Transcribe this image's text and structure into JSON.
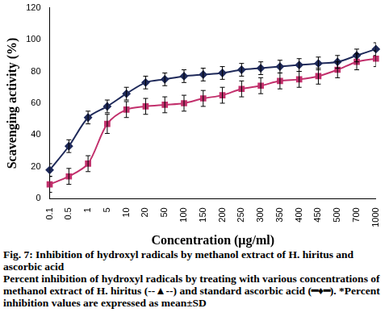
{
  "chart_data": {
    "type": "line",
    "x_label": "Concentration (μg/ml)",
    "y_label": "Scavenging activity (%)",
    "caption_title": "Fig. 7: Inhibition of hydroxyl radicals by methanol extract of H. hiritus and ascorbic acid",
    "caption": "Percent inhibition of hydroxyl radicals by treating with various concentrations of methanol extract of H. hiritus (--▲--) and standard ascorbic acid (━♦━). *Percent inhibition values are expressed as mean±SD",
    "categories": [
      "0.1",
      "0.5",
      "1",
      "5",
      "10",
      "20",
      "50",
      "100",
      "150",
      "200",
      "250",
      "300",
      "350",
      "400",
      "450",
      "500",
      "700",
      "1000"
    ],
    "series": [
      {
        "name": "standard ascorbic acid",
        "color": "#1f2a5a",
        "marker": "diamond",
        "line_style": "solid",
        "values": [
          18,
          33,
          51,
          58,
          66,
          73,
          75,
          77,
          78,
          79,
          81,
          82,
          83,
          84,
          85,
          86,
          90,
          94
        ],
        "errors": [
          4,
          4,
          4,
          4,
          4,
          4,
          4,
          4,
          4,
          4,
          4,
          4,
          4,
          4,
          4,
          4,
          4,
          4
        ]
      },
      {
        "name": "methanol extract of H. hiritus",
        "color": "#c2306c",
        "marker": "square",
        "line_style": "solid",
        "values": [
          9,
          14,
          22,
          47,
          56,
          58,
          59,
          60,
          63,
          65,
          69,
          71,
          74,
          75,
          77,
          81,
          86,
          88
        ],
        "errors": [
          5,
          5,
          5,
          6,
          5,
          5,
          5,
          5,
          5,
          5,
          5,
          5,
          5,
          5,
          5,
          5,
          5,
          5
        ]
      }
    ],
    "ylim": [
      0,
      120
    ],
    "yticks": [
      0,
      20,
      40,
      60,
      80,
      100,
      120
    ],
    "grid": false
  }
}
